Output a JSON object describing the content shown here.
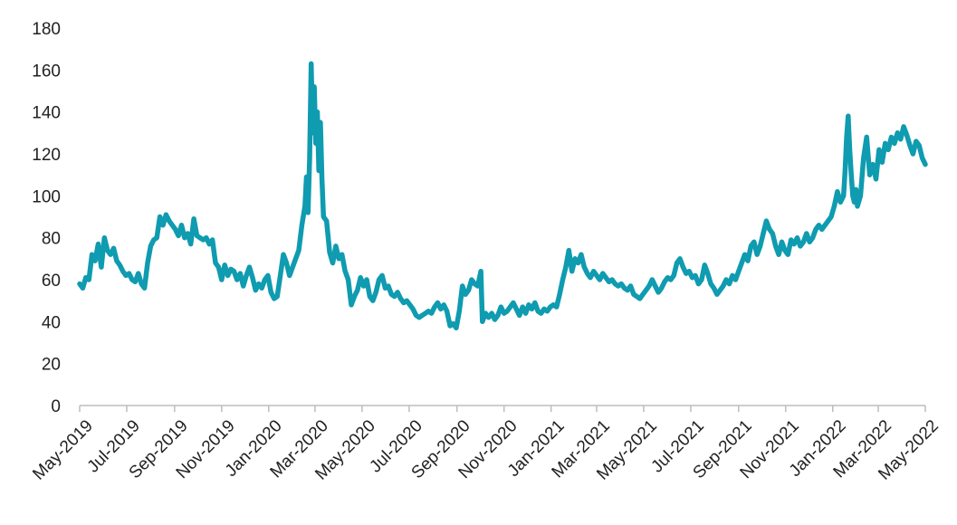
{
  "chart_data": {
    "type": "line",
    "title": "",
    "xlabel": "",
    "ylabel": "",
    "ylim": [
      0,
      180
    ],
    "yticks": [
      0,
      20,
      40,
      60,
      80,
      100,
      120,
      140,
      160,
      180
    ],
    "xticks": [
      "May-2019",
      "Jul-2019",
      "Sep-2019",
      "Nov-2019",
      "Jan-2020",
      "Mar-2020",
      "May-2020",
      "Jul-2020",
      "Sep-2020",
      "Nov-2020",
      "Jan-2021",
      "Mar-2021",
      "May-2021",
      "Jul-2021",
      "Sep-2021",
      "Nov-2021",
      "Jan-2022",
      "Mar-2022",
      "May-2022"
    ],
    "grid": false,
    "legend": "none",
    "line_color": "#0f9bb0",
    "series": [
      {
        "points": [
          [
            "2019-05-01",
            58
          ],
          [
            "2019-05-05",
            56
          ],
          [
            "2019-05-09",
            61
          ],
          [
            "2019-05-13",
            60
          ],
          [
            "2019-05-17",
            72
          ],
          [
            "2019-05-21",
            69
          ],
          [
            "2019-05-25",
            77
          ],
          [
            "2019-05-29",
            66
          ],
          [
            "2019-06-02",
            80
          ],
          [
            "2019-06-06",
            74
          ],
          [
            "2019-06-10",
            72
          ],
          [
            "2019-06-14",
            75
          ],
          [
            "2019-06-18",
            69
          ],
          [
            "2019-06-22",
            67
          ],
          [
            "2019-06-26",
            64
          ],
          [
            "2019-06-30",
            62
          ],
          [
            "2019-07-04",
            63
          ],
          [
            "2019-07-08",
            60
          ],
          [
            "2019-07-12",
            59
          ],
          [
            "2019-07-16",
            63
          ],
          [
            "2019-07-20",
            58
          ],
          [
            "2019-07-24",
            56
          ],
          [
            "2019-07-28",
            68
          ],
          [
            "2019-08-01",
            76
          ],
          [
            "2019-08-05",
            79
          ],
          [
            "2019-08-09",
            80
          ],
          [
            "2019-08-13",
            90
          ],
          [
            "2019-08-17",
            86
          ],
          [
            "2019-08-21",
            91
          ],
          [
            "2019-08-25",
            88
          ],
          [
            "2019-08-29",
            86
          ],
          [
            "2019-09-02",
            84
          ],
          [
            "2019-09-06",
            81
          ],
          [
            "2019-09-10",
            86
          ],
          [
            "2019-09-14",
            80
          ],
          [
            "2019-09-18",
            82
          ],
          [
            "2019-09-22",
            77
          ],
          [
            "2019-09-26",
            89
          ],
          [
            "2019-09-30",
            81
          ],
          [
            "2019-10-04",
            80
          ],
          [
            "2019-10-08",
            79
          ],
          [
            "2019-10-12",
            80
          ],
          [
            "2019-10-16",
            77
          ],
          [
            "2019-10-20",
            79
          ],
          [
            "2019-10-24",
            68
          ],
          [
            "2019-10-28",
            66
          ],
          [
            "2019-11-01",
            60
          ],
          [
            "2019-11-05",
            67
          ],
          [
            "2019-11-09",
            62
          ],
          [
            "2019-11-13",
            65
          ],
          [
            "2019-11-17",
            64
          ],
          [
            "2019-11-21",
            60
          ],
          [
            "2019-11-25",
            63
          ],
          [
            "2019-11-29",
            57
          ],
          [
            "2019-12-03",
            62
          ],
          [
            "2019-12-07",
            66
          ],
          [
            "2019-12-11",
            61
          ],
          [
            "2019-12-15",
            55
          ],
          [
            "2019-12-19",
            58
          ],
          [
            "2019-12-23",
            56
          ],
          [
            "2019-12-27",
            60
          ],
          [
            "2019-12-31",
            62
          ],
          [
            "2020-01-04",
            54
          ],
          [
            "2020-01-08",
            51
          ],
          [
            "2020-01-12",
            52
          ],
          [
            "2020-01-16",
            62
          ],
          [
            "2020-01-20",
            72
          ],
          [
            "2020-01-24",
            68
          ],
          [
            "2020-01-28",
            62
          ],
          [
            "2020-02-01",
            66
          ],
          [
            "2020-02-05",
            70
          ],
          [
            "2020-02-09",
            74
          ],
          [
            "2020-02-13",
            86
          ],
          [
            "2020-02-17",
            95
          ],
          [
            "2020-02-19",
            109
          ],
          [
            "2020-02-21",
            92
          ],
          [
            "2020-02-23",
            118
          ],
          [
            "2020-02-25",
            163
          ],
          [
            "2020-02-27",
            130
          ],
          [
            "2020-02-29",
            152
          ],
          [
            "2020-03-02",
            125
          ],
          [
            "2020-03-04",
            140
          ],
          [
            "2020-03-06",
            112
          ],
          [
            "2020-03-08",
            135
          ],
          [
            "2020-03-10",
            108
          ],
          [
            "2020-03-12",
            90
          ],
          [
            "2020-03-16",
            88
          ],
          [
            "2020-03-20",
            73
          ],
          [
            "2020-03-24",
            68
          ],
          [
            "2020-03-28",
            76
          ],
          [
            "2020-04-01",
            70
          ],
          [
            "2020-04-05",
            72
          ],
          [
            "2020-04-09",
            64
          ],
          [
            "2020-04-13",
            60
          ],
          [
            "2020-04-17",
            48
          ],
          [
            "2020-04-21",
            52
          ],
          [
            "2020-04-25",
            55
          ],
          [
            "2020-04-29",
            61
          ],
          [
            "2020-05-03",
            57
          ],
          [
            "2020-05-07",
            60
          ],
          [
            "2020-05-11",
            52
          ],
          [
            "2020-05-15",
            50
          ],
          [
            "2020-05-19",
            54
          ],
          [
            "2020-05-23",
            60
          ],
          [
            "2020-05-27",
            62
          ],
          [
            "2020-05-31",
            56
          ],
          [
            "2020-06-04",
            57
          ],
          [
            "2020-06-08",
            53
          ],
          [
            "2020-06-12",
            52
          ],
          [
            "2020-06-16",
            54
          ],
          [
            "2020-06-20",
            51
          ],
          [
            "2020-06-24",
            49
          ],
          [
            "2020-06-28",
            50
          ],
          [
            "2020-07-02",
            48
          ],
          [
            "2020-07-06",
            46
          ],
          [
            "2020-07-10",
            43
          ],
          [
            "2020-07-14",
            42
          ],
          [
            "2020-07-18",
            43
          ],
          [
            "2020-07-22",
            44
          ],
          [
            "2020-07-26",
            45
          ],
          [
            "2020-07-30",
            44
          ],
          [
            "2020-08-03",
            47
          ],
          [
            "2020-08-07",
            49
          ],
          [
            "2020-08-11",
            46
          ],
          [
            "2020-08-15",
            48
          ],
          [
            "2020-08-19",
            45
          ],
          [
            "2020-08-23",
            38
          ],
          [
            "2020-08-27",
            39
          ],
          [
            "2020-08-31",
            37
          ],
          [
            "2020-09-04",
            45
          ],
          [
            "2020-09-08",
            57
          ],
          [
            "2020-09-12",
            53
          ],
          [
            "2020-09-16",
            55
          ],
          [
            "2020-09-20",
            60
          ],
          [
            "2020-09-24",
            58
          ],
          [
            "2020-09-28",
            57
          ],
          [
            "2020-10-02",
            64
          ],
          [
            "2020-10-04",
            40
          ],
          [
            "2020-10-08",
            44
          ],
          [
            "2020-10-12",
            42
          ],
          [
            "2020-10-16",
            44
          ],
          [
            "2020-10-20",
            41
          ],
          [
            "2020-10-24",
            43
          ],
          [
            "2020-10-28",
            47
          ],
          [
            "2020-11-01",
            44
          ],
          [
            "2020-11-05",
            45
          ],
          [
            "2020-11-09",
            47
          ],
          [
            "2020-11-13",
            49
          ],
          [
            "2020-11-17",
            46
          ],
          [
            "2020-11-21",
            43
          ],
          [
            "2020-11-25",
            47
          ],
          [
            "2020-11-29",
            44
          ],
          [
            "2020-12-03",
            48
          ],
          [
            "2020-12-07",
            46
          ],
          [
            "2020-12-11",
            49
          ],
          [
            "2020-12-15",
            45
          ],
          [
            "2020-12-19",
            44
          ],
          [
            "2020-12-23",
            46
          ],
          [
            "2020-12-27",
            45
          ],
          [
            "2020-12-31",
            47
          ],
          [
            "2021-01-04",
            48
          ],
          [
            "2021-01-08",
            47
          ],
          [
            "2021-01-12",
            53
          ],
          [
            "2021-01-16",
            60
          ],
          [
            "2021-01-20",
            66
          ],
          [
            "2021-01-24",
            74
          ],
          [
            "2021-01-28",
            64
          ],
          [
            "2021-02-01",
            70
          ],
          [
            "2021-02-05",
            68
          ],
          [
            "2021-02-09",
            72
          ],
          [
            "2021-02-13",
            66
          ],
          [
            "2021-02-17",
            63
          ],
          [
            "2021-02-21",
            61
          ],
          [
            "2021-02-25",
            64
          ],
          [
            "2021-03-01",
            62
          ],
          [
            "2021-03-05",
            60
          ],
          [
            "2021-03-09",
            63
          ],
          [
            "2021-03-13",
            61
          ],
          [
            "2021-03-17",
            59
          ],
          [
            "2021-03-21",
            60
          ],
          [
            "2021-03-25",
            58
          ],
          [
            "2021-03-29",
            57
          ],
          [
            "2021-04-02",
            58
          ],
          [
            "2021-04-06",
            56
          ],
          [
            "2021-04-10",
            55
          ],
          [
            "2021-04-14",
            57
          ],
          [
            "2021-04-18",
            53
          ],
          [
            "2021-04-22",
            52
          ],
          [
            "2021-04-26",
            51
          ],
          [
            "2021-04-30",
            53
          ],
          [
            "2021-05-04",
            55
          ],
          [
            "2021-05-08",
            57
          ],
          [
            "2021-05-12",
            60
          ],
          [
            "2021-05-16",
            57
          ],
          [
            "2021-05-20",
            54
          ],
          [
            "2021-05-24",
            56
          ],
          [
            "2021-05-28",
            59
          ],
          [
            "2021-06-01",
            61
          ],
          [
            "2021-06-05",
            60
          ],
          [
            "2021-06-09",
            62
          ],
          [
            "2021-06-13",
            68
          ],
          [
            "2021-06-17",
            70
          ],
          [
            "2021-06-21",
            66
          ],
          [
            "2021-06-25",
            63
          ],
          [
            "2021-06-29",
            64
          ],
          [
            "2021-07-03",
            61
          ],
          [
            "2021-07-07",
            62
          ],
          [
            "2021-07-11",
            58
          ],
          [
            "2021-07-15",
            60
          ],
          [
            "2021-07-19",
            67
          ],
          [
            "2021-07-23",
            63
          ],
          [
            "2021-07-27",
            58
          ],
          [
            "2021-07-31",
            56
          ],
          [
            "2021-08-04",
            53
          ],
          [
            "2021-08-08",
            55
          ],
          [
            "2021-08-12",
            57
          ],
          [
            "2021-08-16",
            60
          ],
          [
            "2021-08-20",
            58
          ],
          [
            "2021-08-24",
            62
          ],
          [
            "2021-08-28",
            60
          ],
          [
            "2021-09-01",
            64
          ],
          [
            "2021-09-05",
            68
          ],
          [
            "2021-09-09",
            72
          ],
          [
            "2021-09-13",
            69
          ],
          [
            "2021-09-17",
            76
          ],
          [
            "2021-09-21",
            78
          ],
          [
            "2021-09-25",
            72
          ],
          [
            "2021-09-29",
            76
          ],
          [
            "2021-10-03",
            82
          ],
          [
            "2021-10-07",
            88
          ],
          [
            "2021-10-11",
            84
          ],
          [
            "2021-10-15",
            82
          ],
          [
            "2021-10-19",
            76
          ],
          [
            "2021-10-23",
            72
          ],
          [
            "2021-10-27",
            78
          ],
          [
            "2021-10-31",
            74
          ],
          [
            "2021-11-04",
            72
          ],
          [
            "2021-11-08",
            79
          ],
          [
            "2021-11-12",
            77
          ],
          [
            "2021-11-16",
            80
          ],
          [
            "2021-11-20",
            76
          ],
          [
            "2021-11-24",
            78
          ],
          [
            "2021-11-28",
            82
          ],
          [
            "2021-12-02",
            78
          ],
          [
            "2021-12-06",
            80
          ],
          [
            "2021-12-10",
            84
          ],
          [
            "2021-12-14",
            86
          ],
          [
            "2021-12-18",
            84
          ],
          [
            "2021-12-22",
            86
          ],
          [
            "2021-12-26",
            88
          ],
          [
            "2021-12-30",
            90
          ],
          [
            "2022-01-03",
            95
          ],
          [
            "2022-01-07",
            102
          ],
          [
            "2022-01-11",
            97
          ],
          [
            "2022-01-15",
            100
          ],
          [
            "2022-01-17",
            112
          ],
          [
            "2022-01-19",
            128
          ],
          [
            "2022-01-21",
            138
          ],
          [
            "2022-01-23",
            122
          ],
          [
            "2022-01-25",
            110
          ],
          [
            "2022-01-27",
            100
          ],
          [
            "2022-01-29",
            97
          ],
          [
            "2022-01-31",
            103
          ],
          [
            "2022-02-02",
            95
          ],
          [
            "2022-02-06",
            100
          ],
          [
            "2022-02-10",
            118
          ],
          [
            "2022-02-14",
            128
          ],
          [
            "2022-02-18",
            110
          ],
          [
            "2022-02-22",
            115
          ],
          [
            "2022-02-26",
            108
          ],
          [
            "2022-03-02",
            122
          ],
          [
            "2022-03-06",
            116
          ],
          [
            "2022-03-10",
            125
          ],
          [
            "2022-03-14",
            122
          ],
          [
            "2022-03-18",
            128
          ],
          [
            "2022-03-22",
            125
          ],
          [
            "2022-03-26",
            130
          ],
          [
            "2022-03-30",
            127
          ],
          [
            "2022-04-03",
            133
          ],
          [
            "2022-04-07",
            129
          ],
          [
            "2022-04-11",
            124
          ],
          [
            "2022-04-15",
            120
          ],
          [
            "2022-04-19",
            126
          ],
          [
            "2022-04-23",
            124
          ],
          [
            "2022-04-27",
            118
          ],
          [
            "2022-05-01",
            115
          ]
        ]
      }
    ]
  }
}
